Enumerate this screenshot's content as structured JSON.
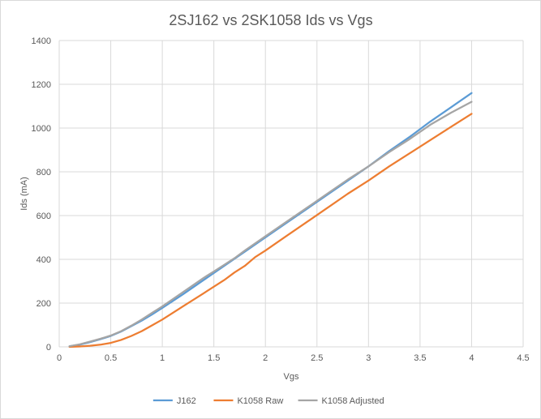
{
  "chart_data": {
    "type": "line",
    "title": "2SJ162 vs 2SK1058 Ids vs Vgs",
    "xlabel": "Vgs",
    "ylabel": "Ids (mA)",
    "xlim": [
      0,
      4.5
    ],
    "ylim": [
      0,
      1400
    ],
    "xticks": [
      0,
      0.5,
      1,
      1.5,
      2,
      2.5,
      3,
      3.5,
      4,
      4.5
    ],
    "yticks": [
      0,
      200,
      400,
      600,
      800,
      1000,
      1200,
      1400
    ],
    "xtick_labels": [
      "0",
      "0.5",
      "1",
      "1.5",
      "2",
      "2.5",
      "3",
      "3.5",
      "4",
      "4.5"
    ],
    "ytick_labels": [
      "0",
      "200",
      "400",
      "600",
      "800",
      "1000",
      "1200",
      "1400"
    ],
    "grid": "vertical and horizontal major gridlines",
    "legend": "bottom",
    "series": [
      {
        "name": "J162",
        "color": "#5b9bd5",
        "x": [
          0.1,
          0.2,
          0.3,
          0.4,
          0.5,
          0.6,
          0.7,
          0.8,
          0.9,
          1.0,
          1.2,
          1.4,
          1.6,
          1.8,
          2.0,
          2.2,
          2.4,
          2.6,
          2.8,
          3.0,
          3.2,
          3.4,
          3.6,
          3.8,
          4.0
        ],
        "y": [
          3,
          10,
          22,
          35,
          50,
          70,
          95,
          120,
          148,
          178,
          240,
          305,
          370,
          435,
          500,
          565,
          630,
          695,
          760,
          825,
          895,
          960,
          1030,
          1095,
          1160
        ]
      },
      {
        "name": "K1058 Raw",
        "color": "#ed7d31",
        "x": [
          0.1,
          0.2,
          0.3,
          0.4,
          0.5,
          0.6,
          0.7,
          0.8,
          0.9,
          1.0,
          1.2,
          1.4,
          1.6,
          1.7,
          1.8,
          1.9,
          2.0,
          2.2,
          2.4,
          2.6,
          2.8,
          3.0,
          3.2,
          3.4,
          3.6,
          3.8,
          4.0
        ],
        "y": [
          0,
          2,
          5,
          10,
          18,
          32,
          50,
          72,
          98,
          125,
          185,
          245,
          305,
          340,
          370,
          410,
          440,
          505,
          570,
          635,
          700,
          760,
          825,
          885,
          945,
          1005,
          1065
        ]
      },
      {
        "name": "K1058 Adjusted",
        "color": "#a5a5a5",
        "x": [
          0.1,
          0.2,
          0.3,
          0.4,
          0.5,
          0.6,
          0.7,
          0.8,
          0.9,
          1.0,
          1.2,
          1.4,
          1.5,
          1.6,
          1.7,
          1.8,
          2.0,
          2.2,
          2.4,
          2.6,
          2.8,
          3.0,
          3.2,
          3.4,
          3.6,
          3.8,
          3.9,
          4.0
        ],
        "y": [
          3,
          12,
          24,
          37,
          52,
          72,
          97,
          125,
          155,
          185,
          250,
          315,
          345,
          375,
          405,
          440,
          505,
          570,
          635,
          700,
          765,
          825,
          890,
          950,
          1015,
          1070,
          1095,
          1120
        ]
      }
    ]
  }
}
